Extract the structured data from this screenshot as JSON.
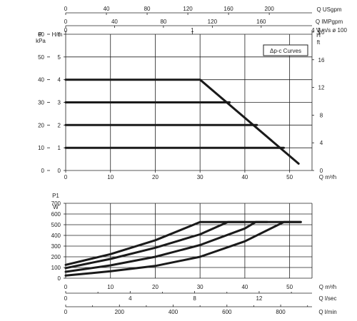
{
  "chart_data": [
    {
      "type": "line",
      "title": "",
      "legend_label": "Δp-c Curves",
      "legend_position": "top-right",
      "grid": true,
      "xlabel": "Q m³/h",
      "xlim": [
        0,
        55
      ],
      "x_ticks": [
        "0",
        "10",
        "20",
        "30",
        "40",
        "50"
      ],
      "ylabel_left_outer": "P kPa",
      "ylim_left_outer": [
        0,
        60
      ],
      "y_ticks_left_outer": [
        "0",
        "10",
        "20",
        "30",
        "40",
        "50",
        "60"
      ],
      "ylabel_left_inner": "H/m",
      "ylim_left_inner": [
        0,
        6
      ],
      "y_ticks_left_inner": [
        "0",
        "1",
        "2",
        "3",
        "4",
        "5",
        "6"
      ],
      "ylabel_right": "H ft",
      "ylim_right": [
        0,
        20
      ],
      "y_ticks_right": [
        "0",
        "4",
        "8",
        "12",
        "16",
        "20"
      ],
      "top_axes": [
        {
          "label": "Q USgpm",
          "ticks": [
            "0",
            "40",
            "80",
            "120",
            "160",
            "200"
          ],
          "range": [
            0,
            242
          ]
        },
        {
          "label": "Q IMPgpm",
          "ticks": [
            "0",
            "40",
            "80",
            "120",
            "160"
          ],
          "range": [
            0,
            201.6
          ]
        },
        {
          "label": "4 V m/s ø 100",
          "ticks": [
            "0",
            "1",
            "2",
            "3",
            "4"
          ],
          "range": [
            0,
            1.945
          ]
        }
      ],
      "series": [
        {
          "x": [
            0,
            30,
            52
          ],
          "y": [
            4,
            4,
            0.3
          ]
        },
        {
          "x": [
            0,
            36.6
          ],
          "y": [
            3,
            3
          ]
        },
        {
          "x": [
            0,
            42.7
          ],
          "y": [
            2,
            2
          ]
        },
        {
          "x": [
            0,
            48.7
          ],
          "y": [
            1,
            1
          ]
        }
      ]
    },
    {
      "type": "line",
      "title": "",
      "grid": true,
      "ylabel": "P1 W",
      "ylim": [
        0,
        700
      ],
      "y_ticks": [
        "0",
        "100",
        "200",
        "300",
        "400",
        "500",
        "600",
        "700"
      ],
      "xlabel": "Q m³/h",
      "xlim": [
        0,
        55
      ],
      "x_ticks": [
        "0",
        "10",
        "20",
        "30",
        "40",
        "50"
      ],
      "bottom_axes": [
        {
          "label": "Q l/sec",
          "ticks": [
            "0",
            "4",
            "8",
            "12"
          ],
          "range": [
            0,
            15.28
          ]
        },
        {
          "label": "Q l/min",
          "ticks": [
            "0",
            "200",
            "400",
            "600",
            "800"
          ],
          "range": [
            0,
            916.7
          ]
        }
      ],
      "series": [
        {
          "x": [
            0,
            10,
            20,
            28,
            30,
            52.5
          ],
          "y": [
            125,
            225,
            355,
            490,
            525,
            525
          ]
        },
        {
          "x": [
            0,
            10,
            20,
            30,
            36.2,
            40
          ],
          "y": [
            95,
            180,
            285,
            410,
            525,
            525
          ]
        },
        {
          "x": [
            0,
            10,
            20,
            30,
            40,
            42.4,
            45
          ],
          "y": [
            60,
            120,
            200,
            310,
            465,
            525,
            525
          ]
        },
        {
          "x": [
            0,
            10,
            20,
            30,
            40,
            48.7,
            52.5
          ],
          "y": [
            25,
            65,
            115,
            200,
            345,
            525,
            525
          ]
        }
      ]
    }
  ]
}
